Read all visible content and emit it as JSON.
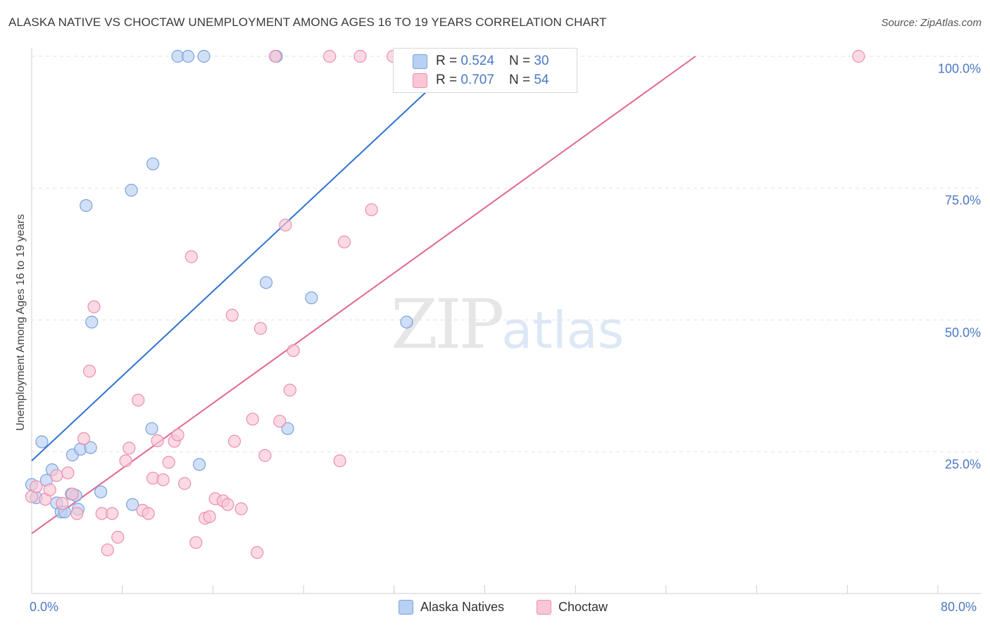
{
  "title": "ALASKA NATIVE VS CHOCTAW UNEMPLOYMENT AMONG AGES 16 TO 19 YEARS CORRELATION CHART",
  "source": "Source: ZipAtlas.com",
  "watermark": {
    "zip": "ZIP",
    "atlas": "atlas"
  },
  "colors": {
    "blue_fill": "#b8d0f2",
    "blue_stroke": "#7aa3dc",
    "blue_line": "#2f73cf",
    "pink_fill": "#f9c6d6",
    "pink_stroke": "#eb8fae",
    "pink_line": "#e06690",
    "accent_text": "#4a78c4"
  },
  "legend": {
    "rows": [
      {
        "r_label": "R = ",
        "r_value": "0.524",
        "n_label": "N = ",
        "n_value": "30"
      },
      {
        "r_label": "R = ",
        "r_value": "0.707",
        "n_label": "N = ",
        "n_value": "54"
      }
    ]
  },
  "bottom_legend": {
    "series1": "Alaska Natives",
    "series2": "Choctaw"
  },
  "chart_data": {
    "type": "scatter",
    "title": "ALASKA NATIVE VS CHOCTAW UNEMPLOYMENT AMONG AGES 16 TO 19 YEARS CORRELATION CHART",
    "xlabel": "",
    "ylabel": "Unemployment Among Ages 16 to 19 years",
    "xlim": [
      0,
      80
    ],
    "ylim": [
      0,
      100
    ],
    "x_tick_labels": [
      "0.0%",
      "80.0%"
    ],
    "y_ticks": [
      {
        "value": 100,
        "label": "100.0%"
      },
      {
        "value": 75,
        "label": "75.0%"
      },
      {
        "value": 50,
        "label": "50.0%"
      },
      {
        "value": 25,
        "label": "25.0%"
      }
    ],
    "series": [
      {
        "name": "Alaska Natives",
        "R": 0.524,
        "N": 30,
        "trend": {
          "x0": 0,
          "y0": 23.3,
          "x1": 80,
          "y1": 184
        },
        "points": [
          [
            0.0,
            18.8
          ],
          [
            0.4,
            16.3
          ],
          [
            0.9,
            26.9
          ],
          [
            1.3,
            19.6
          ],
          [
            1.8,
            21.6
          ],
          [
            2.2,
            15.3
          ],
          [
            2.6,
            13.6
          ],
          [
            2.9,
            13.6
          ],
          [
            3.5,
            17.0
          ],
          [
            3.9,
            16.7
          ],
          [
            3.6,
            24.4
          ],
          [
            4.1,
            14.1
          ],
          [
            4.3,
            25.5
          ],
          [
            5.2,
            25.8
          ],
          [
            4.8,
            71.7
          ],
          [
            5.3,
            49.6
          ],
          [
            6.1,
            17.4
          ],
          [
            8.8,
            74.6
          ],
          [
            8.9,
            15.0
          ],
          [
            10.7,
            79.6
          ],
          [
            10.6,
            29.4
          ],
          [
            12.9,
            100
          ],
          [
            13.8,
            100
          ],
          [
            14.8,
            22.6
          ],
          [
            15.2,
            100
          ],
          [
            20.7,
            57.1
          ],
          [
            21.6,
            100
          ],
          [
            22.6,
            29.4
          ],
          [
            24.7,
            54.2
          ],
          [
            33.1,
            49.6
          ]
        ]
      },
      {
        "name": "Choctaw",
        "R": 0.707,
        "N": 54,
        "trend": {
          "x0": 0,
          "y0": 9.5,
          "x1": 58.6,
          "y1": 100
        },
        "points": [
          [
            0.0,
            16.5
          ],
          [
            0.4,
            18.4
          ],
          [
            1.2,
            16.0
          ],
          [
            1.6,
            17.8
          ],
          [
            2.2,
            20.5
          ],
          [
            2.7,
            15.2
          ],
          [
            3.2,
            21.0
          ],
          [
            3.6,
            17.0
          ],
          [
            4.0,
            13.3
          ],
          [
            4.6,
            27.5
          ],
          [
            5.1,
            40.3
          ],
          [
            5.5,
            52.5
          ],
          [
            6.2,
            13.3
          ],
          [
            6.7,
            6.4
          ],
          [
            7.1,
            13.3
          ],
          [
            7.6,
            8.8
          ],
          [
            8.3,
            23.3
          ],
          [
            8.6,
            25.7
          ],
          [
            9.4,
            34.8
          ],
          [
            9.8,
            13.9
          ],
          [
            10.3,
            13.3
          ],
          [
            10.7,
            20.0
          ],
          [
            11.1,
            27.1
          ],
          [
            11.6,
            19.7
          ],
          [
            12.1,
            23.0
          ],
          [
            12.6,
            27.0
          ],
          [
            12.9,
            28.2
          ],
          [
            13.5,
            19.0
          ],
          [
            14.1,
            62.0
          ],
          [
            14.5,
            7.8
          ],
          [
            15.3,
            12.4
          ],
          [
            15.7,
            12.7
          ],
          [
            16.2,
            16.1
          ],
          [
            16.9,
            15.7
          ],
          [
            17.3,
            15.0
          ],
          [
            17.7,
            50.9
          ],
          [
            17.9,
            27.0
          ],
          [
            18.5,
            14.2
          ],
          [
            19.5,
            31.2
          ],
          [
            19.9,
            5.9
          ],
          [
            20.2,
            48.4
          ],
          [
            20.6,
            24.3
          ],
          [
            21.5,
            100
          ],
          [
            21.9,
            30.8
          ],
          [
            22.4,
            68.0
          ],
          [
            22.8,
            36.7
          ],
          [
            23.1,
            44.2
          ],
          [
            26.3,
            100
          ],
          [
            27.2,
            23.3
          ],
          [
            27.6,
            64.8
          ],
          [
            29.0,
            100
          ],
          [
            30.0,
            70.9
          ],
          [
            31.9,
            100
          ],
          [
            73.0,
            100
          ]
        ]
      }
    ]
  }
}
